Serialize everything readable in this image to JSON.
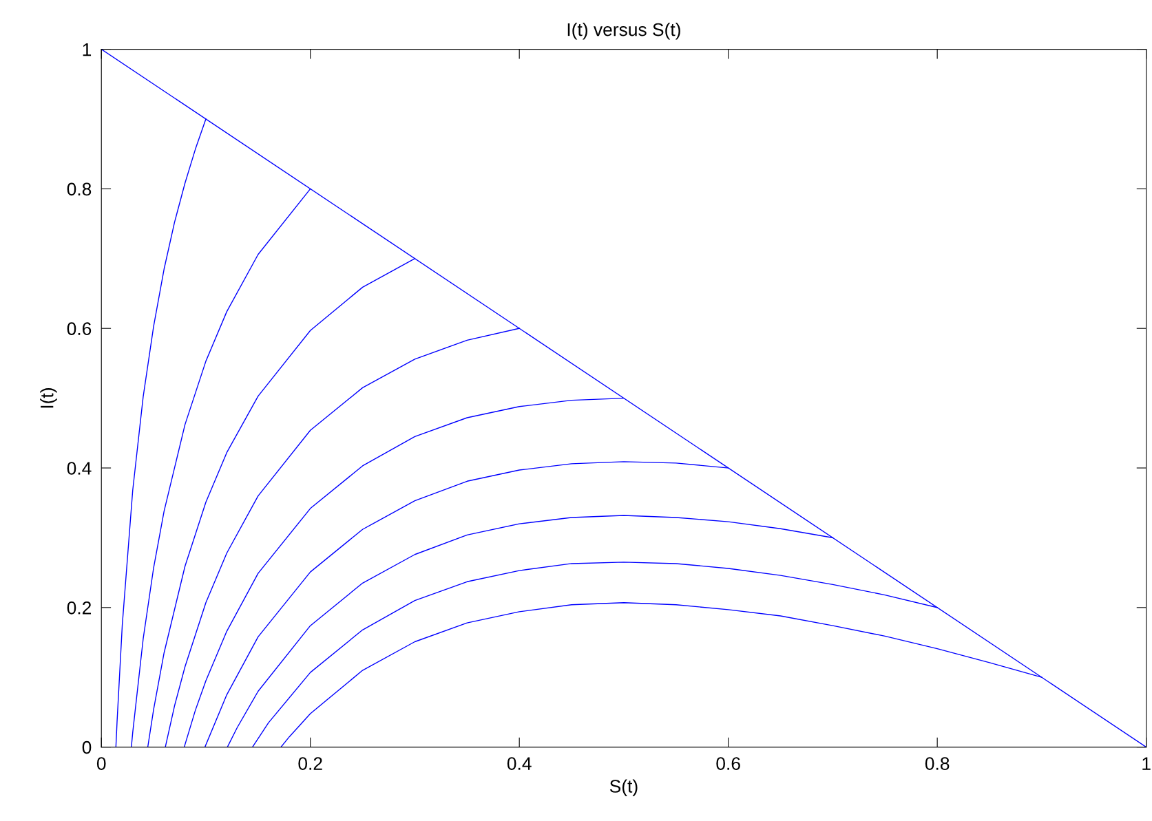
{
  "chart_data": {
    "type": "line",
    "title": "I(t) versus S(t)",
    "xlabel": "S(t)",
    "ylabel": "I(t)",
    "xlim": [
      0,
      1
    ],
    "ylim": [
      0,
      1
    ],
    "xticks": [
      0,
      0.2,
      0.4,
      0.6,
      0.8,
      1
    ],
    "yticks": [
      0,
      0.2,
      0.4,
      0.6,
      0.8,
      1
    ],
    "grid": false,
    "legend": false,
    "marker": "none",
    "line_style": "solid",
    "series": [
      {
        "color": "#0000ff",
        "x": [
          0,
          1
        ],
        "values": [
          1,
          0
        ]
      },
      {
        "color": "#0000ff",
        "x": [
          0.0139,
          0.015,
          0.02,
          0.03,
          0.04,
          0.05,
          0.06,
          0.07,
          0.08,
          0.09,
          0.1
        ],
        "values": [
          0,
          0.036,
          0.175,
          0.368,
          0.502,
          0.603,
          0.685,
          0.752,
          0.808,
          0.857,
          0.9
        ]
      },
      {
        "color": "#0000ff",
        "x": [
          0.0287,
          0.03,
          0.04,
          0.05,
          0.06,
          0.08,
          0.1,
          0.12,
          0.15,
          0.2
        ],
        "values": [
          0,
          0.021,
          0.155,
          0.257,
          0.338,
          0.462,
          0.553,
          0.624,
          0.706,
          0.8
        ]
      },
      {
        "color": "#0000ff",
        "x": [
          0.0444,
          0.05,
          0.06,
          0.08,
          0.1,
          0.12,
          0.15,
          0.2,
          0.25,
          0.3
        ],
        "values": [
          0,
          0.054,
          0.135,
          0.259,
          0.351,
          0.422,
          0.503,
          0.597,
          0.659,
          0.7
        ]
      },
      {
        "color": "#0000ff",
        "x": [
          0.0612,
          0.07,
          0.08,
          0.1,
          0.12,
          0.15,
          0.2,
          0.25,
          0.3,
          0.35,
          0.4
        ],
        "values": [
          0,
          0.059,
          0.115,
          0.207,
          0.278,
          0.36,
          0.454,
          0.515,
          0.556,
          0.583,
          0.6
        ]
      },
      {
        "color": "#0000ff",
        "x": [
          0.0793,
          0.09,
          0.1,
          0.12,
          0.15,
          0.2,
          0.25,
          0.3,
          0.35,
          0.4,
          0.45,
          0.5
        ],
        "values": [
          0,
          0.053,
          0.095,
          0.166,
          0.249,
          0.342,
          0.403,
          0.445,
          0.472,
          0.488,
          0.497,
          0.5
        ]
      },
      {
        "color": "#0000ff",
        "x": [
          0.0991,
          0.12,
          0.15,
          0.2,
          0.25,
          0.3,
          0.35,
          0.4,
          0.45,
          0.5,
          0.55,
          0.6
        ],
        "values": [
          0,
          0.075,
          0.158,
          0.251,
          0.312,
          0.353,
          0.381,
          0.397,
          0.406,
          0.409,
          0.407,
          0.4
        ]
      },
      {
        "color": "#0000ff",
        "x": [
          0.1206,
          0.13,
          0.15,
          0.2,
          0.25,
          0.3,
          0.35,
          0.4,
          0.45,
          0.5,
          0.55,
          0.6,
          0.65,
          0.7
        ],
        "values": [
          0,
          0.028,
          0.08,
          0.174,
          0.235,
          0.276,
          0.304,
          0.32,
          0.329,
          0.332,
          0.329,
          0.323,
          0.313,
          0.3
        ]
      },
      {
        "color": "#0000ff",
        "x": [
          0.1446,
          0.16,
          0.2,
          0.25,
          0.3,
          0.35,
          0.4,
          0.45,
          0.5,
          0.55,
          0.6,
          0.65,
          0.7,
          0.75,
          0.8
        ],
        "values": [
          0,
          0.035,
          0.107,
          0.168,
          0.21,
          0.237,
          0.253,
          0.263,
          0.265,
          0.263,
          0.256,
          0.246,
          0.233,
          0.218,
          0.2
        ]
      },
      {
        "color": "#0000ff",
        "x": [
          0.1718,
          0.18,
          0.2,
          0.25,
          0.3,
          0.35,
          0.4,
          0.45,
          0.5,
          0.55,
          0.6,
          0.65,
          0.7,
          0.75,
          0.8,
          0.85,
          0.9
        ],
        "values": [
          0,
          0.015,
          0.048,
          0.11,
          0.151,
          0.178,
          0.194,
          0.204,
          0.207,
          0.204,
          0.197,
          0.188,
          0.174,
          0.159,
          0.141,
          0.121,
          0.1
        ]
      }
    ]
  }
}
